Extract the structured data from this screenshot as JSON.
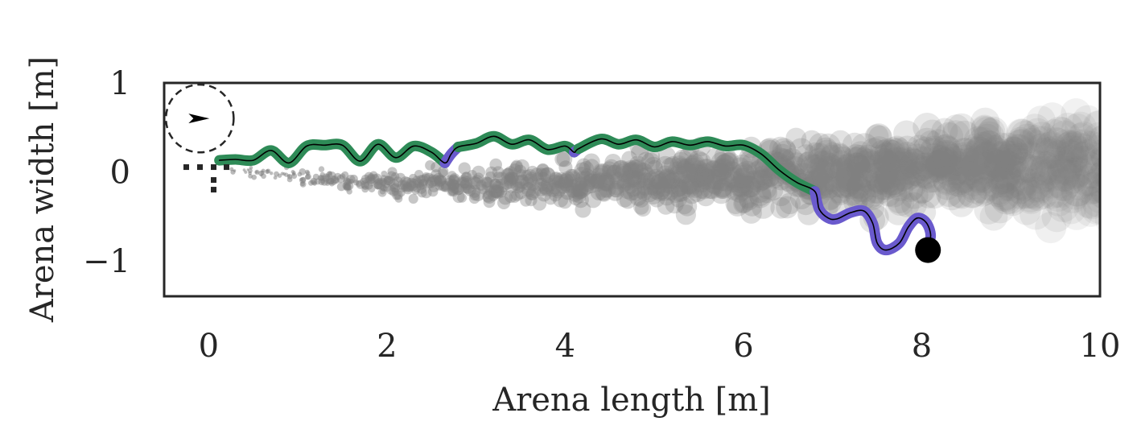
{
  "chart_data": {
    "type": "scatter",
    "title": "",
    "xlabel": "Arena length [m]",
    "ylabel": "Arena width [m]",
    "xlim": [
      -0.5,
      10
    ],
    "ylim": [
      -1.4,
      1
    ],
    "x_ticks": [
      0,
      2,
      4,
      6,
      8,
      10
    ],
    "x_tick_labels": [
      "0",
      "2",
      "4",
      "6",
      "8",
      "10"
    ],
    "y_ticks": [
      1,
      0,
      -1
    ],
    "y_tick_labels": [
      "1",
      "0",
      "−1"
    ],
    "grid": false,
    "legend": "none",
    "colors": {
      "plume": "#808080",
      "surge": "#2e8b57",
      "cast": "#6a5acd",
      "trajectory": "#000000",
      "end_marker": "#000000",
      "frame": "#262626"
    },
    "source": {
      "center": [
        -0.1,
        0.6
      ],
      "radius": 0.38,
      "heading": "east"
    },
    "start_marker": {
      "x": 0.15,
      "y": 0.13
    },
    "end_marker": {
      "x": 8.07,
      "y": -0.88
    },
    "plume_centerline": [
      [
        0.25,
        0.03
      ],
      [
        1.0,
        -0.06
      ],
      [
        2.0,
        -0.14
      ],
      [
        3.0,
        -0.14
      ],
      [
        4.0,
        -0.14
      ],
      [
        5.0,
        -0.11
      ],
      [
        6.0,
        -0.05
      ],
      [
        7.0,
        0.0
      ],
      [
        8.0,
        0.03
      ],
      [
        9.0,
        0.06
      ],
      [
        10.0,
        0.06
      ]
    ],
    "series": [
      {
        "behavior": "surge",
        "x": [
          0.12,
          0.3,
          0.5,
          0.7,
          0.9,
          1.1,
          1.3,
          1.5,
          1.7,
          1.9,
          2.1,
          2.3,
          2.5,
          2.65
        ],
        "y": [
          0.13,
          0.14,
          0.13,
          0.24,
          0.1,
          0.29,
          0.3,
          0.3,
          0.12,
          0.31,
          0.16,
          0.29,
          0.22,
          0.1
        ]
      },
      {
        "behavior": "cast",
        "x": [
          2.65,
          2.72,
          2.8
        ],
        "y": [
          0.1,
          0.2,
          0.28
        ]
      },
      {
        "behavior": "surge",
        "x": [
          2.8,
          3.0,
          3.2,
          3.4,
          3.6,
          3.8,
          4.0,
          4.1
        ],
        "y": [
          0.28,
          0.32,
          0.4,
          0.31,
          0.36,
          0.25,
          0.29,
          0.22
        ]
      },
      {
        "behavior": "cast",
        "x": [
          4.1,
          4.15
        ],
        "y": [
          0.22,
          0.26
        ]
      },
      {
        "behavior": "surge",
        "x": [
          4.15,
          4.4,
          4.6,
          4.8,
          5.0,
          5.2,
          5.4,
          5.6,
          5.8,
          6.0,
          6.2,
          6.4,
          6.6,
          6.8
        ],
        "y": [
          0.26,
          0.37,
          0.31,
          0.36,
          0.28,
          0.34,
          0.3,
          0.34,
          0.29,
          0.3,
          0.2,
          0.02,
          -0.12,
          -0.22
        ]
      },
      {
        "behavior": "cast",
        "x": [
          6.8,
          6.85,
          6.95,
          7.05,
          7.2,
          7.35,
          7.45,
          7.5,
          7.6,
          7.75,
          7.85,
          7.95,
          8.05,
          8.1,
          8.05
        ],
        "y": [
          -0.22,
          -0.42,
          -0.52,
          -0.53,
          -0.46,
          -0.44,
          -0.58,
          -0.8,
          -0.88,
          -0.8,
          -0.62,
          -0.52,
          -0.57,
          -0.72,
          -0.88
        ]
      }
    ]
  }
}
